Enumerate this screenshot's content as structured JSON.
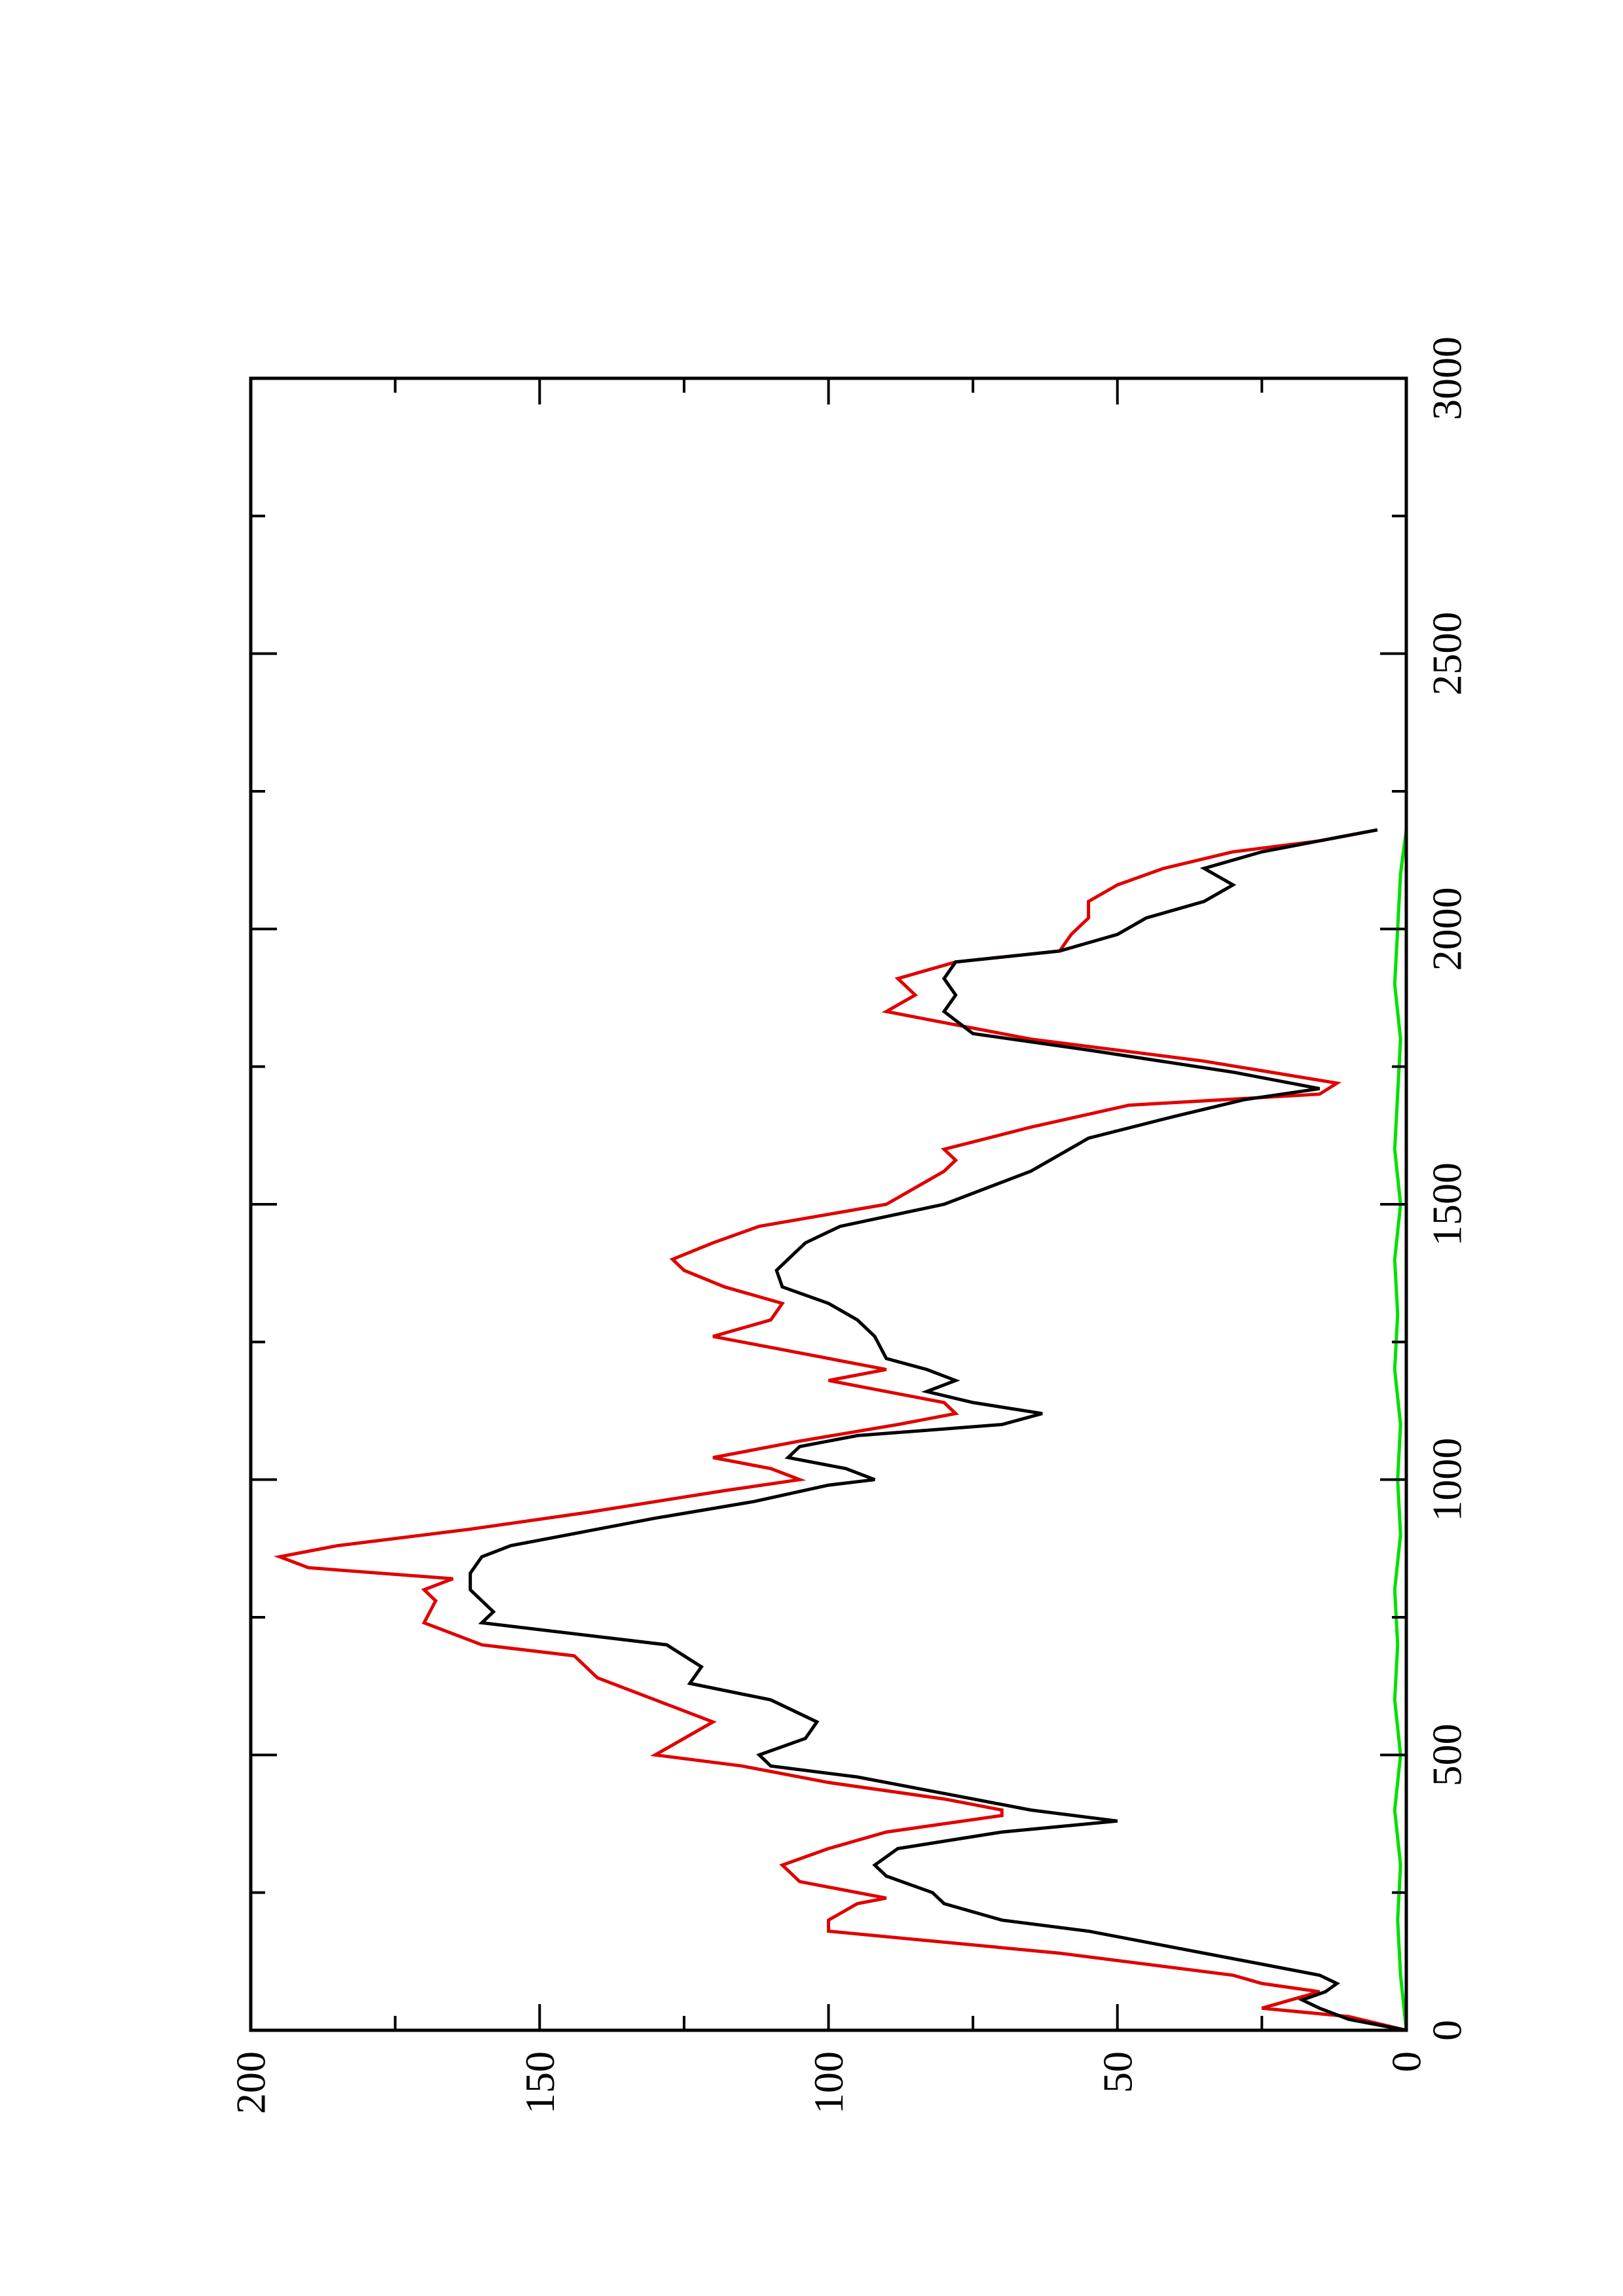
{
  "chart_data": {
    "type": "line",
    "orientation": "rotated-90-ccw",
    "title": "",
    "xlabel": "",
    "ylabel": "",
    "xlim": [
      0,
      3000
    ],
    "ylim": [
      0,
      200
    ],
    "x_ticks": [
      "0",
      "500",
      "1000",
      "1500",
      "2000",
      "2500",
      "3000"
    ],
    "y_ticks": [
      "0",
      "50",
      "100",
      "150",
      "200"
    ],
    "grid": false,
    "legend": "none",
    "series": [
      {
        "color": "#000000",
        "x": [
          0,
          20,
          40,
          55,
          70,
          85,
          100,
          120,
          150,
          180,
          200,
          230,
          250,
          280,
          300,
          330,
          360,
          380,
          400,
          420,
          440,
          460,
          480,
          500,
          530,
          560,
          600,
          630,
          660,
          700,
          740,
          760,
          780,
          800,
          830,
          860,
          880,
          900,
          930,
          960,
          990,
          1000,
          1020,
          1040,
          1060,
          1080,
          1100,
          1120,
          1140,
          1160,
          1180,
          1200,
          1220,
          1260,
          1290,
          1320,
          1350,
          1380,
          1400,
          1430,
          1460,
          1500,
          1540,
          1560,
          1590,
          1620,
          1660,
          1690,
          1710,
          1740,
          1780,
          1810,
          1850,
          1880,
          1910,
          1940,
          1960,
          1990,
          2020,
          2050,
          2080,
          2110,
          2140,
          2160,
          2180
        ],
        "y": [
          0,
          10,
          15,
          18,
          14,
          12,
          15,
          25,
          40,
          55,
          70,
          80,
          82,
          90,
          92,
          88,
          70,
          50,
          65,
          75,
          85,
          95,
          110,
          112,
          104,
          102,
          110,
          124,
          122,
          128,
          160,
          158,
          160,
          162,
          162,
          160,
          155,
          145,
          130,
          113,
          100,
          92,
          97,
          107,
          105,
          95,
          70,
          63,
          75,
          83,
          78,
          83,
          90,
          92,
          95,
          100,
          108,
          109,
          107,
          104,
          98,
          80,
          70,
          65,
          60,
          55,
          40,
          28,
          15,
          30,
          55,
          75,
          80,
          78,
          80,
          78,
          60,
          50,
          45,
          35,
          30,
          35,
          25,
          15,
          5
        ]
      },
      {
        "color": "#e00000",
        "x": [
          0,
          25,
          40,
          55,
          70,
          85,
          100,
          140,
          180,
          200,
          230,
          240,
          270,
          300,
          330,
          360,
          390,
          400,
          420,
          450,
          480,
          500,
          530,
          560,
          600,
          640,
          680,
          700,
          740,
          780,
          800,
          820,
          840,
          860,
          880,
          910,
          940,
          980,
          1000,
          1020,
          1040,
          1070,
          1100,
          1120,
          1140,
          1180,
          1200,
          1240,
          1260,
          1290,
          1320,
          1350,
          1380,
          1400,
          1430,
          1460,
          1500,
          1530,
          1560,
          1580,
          1600,
          1640,
          1680,
          1700,
          1720,
          1760,
          1800,
          1830,
          1850,
          1880,
          1910,
          1940,
          1960,
          1990,
          2020,
          2050,
          2080,
          2110,
          2140,
          2160,
          2180
        ],
        "y": [
          0,
          10,
          25,
          20,
          15,
          25,
          30,
          60,
          100,
          100,
          95,
          90,
          105,
          108,
          100,
          90,
          70,
          70,
          80,
          100,
          115,
          130,
          125,
          120,
          130,
          140,
          144,
          160,
          170,
          168,
          170,
          165,
          190,
          195,
          185,
          162,
          142,
          118,
          105,
          110,
          120,
          105,
          88,
          78,
          80,
          100,
          90,
          110,
          120,
          110,
          108,
          118,
          125,
          127,
          120,
          112,
          90,
          85,
          80,
          78,
          80,
          65,
          48,
          15,
          12,
          35,
          65,
          80,
          90,
          85,
          88,
          78,
          60,
          58,
          55,
          55,
          50,
          42,
          30,
          15,
          5
        ]
      },
      {
        "color": "#00e000",
        "x": [
          0,
          100,
          200,
          300,
          400,
          500,
          600,
          700,
          800,
          900,
          1000,
          1100,
          1200,
          1300,
          1400,
          1500,
          1600,
          1700,
          1800,
          1900,
          2000,
          2100,
          2180
        ],
        "y": [
          0,
          1,
          1.5,
          1,
          2,
          1,
          2,
          1.5,
          2,
          1,
          1.5,
          1,
          2,
          1.5,
          2,
          1,
          2,
          1.5,
          1,
          2,
          1.5,
          1,
          0
        ]
      }
    ]
  }
}
